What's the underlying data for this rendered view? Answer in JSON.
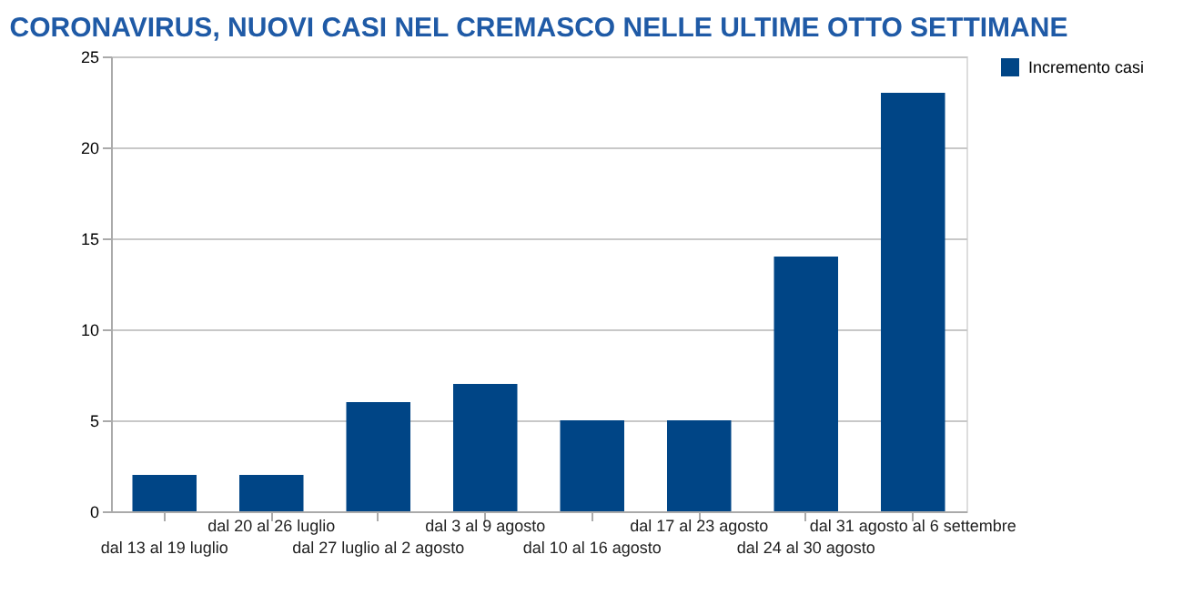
{
  "chart_data": {
    "type": "bar",
    "title": "CORONAVIRUS, NUOVI CASI NEL CREMASCO NELLE ULTIME OTTO SETTIMANE",
    "categories": [
      "dal 13 al 19 luglio",
      "dal 20 al 26 luglio",
      "dal 27 luglio al 2 agosto",
      "dal 3 al 9 agosto",
      "dal 10 al 16 agosto",
      "dal 17 al 23 agosto",
      "dal 24 al 30 agosto",
      "dal 31 agosto al 6 settembre"
    ],
    "series": [
      {
        "name": "Incremento casi",
        "color": "#004586",
        "values": [
          2,
          2,
          6,
          7,
          5,
          5,
          14,
          23
        ]
      }
    ],
    "ylim": [
      0,
      25
    ],
    "yticks": [
      0,
      5,
      10,
      15,
      20,
      25
    ],
    "grid": "y",
    "legend": "right"
  }
}
